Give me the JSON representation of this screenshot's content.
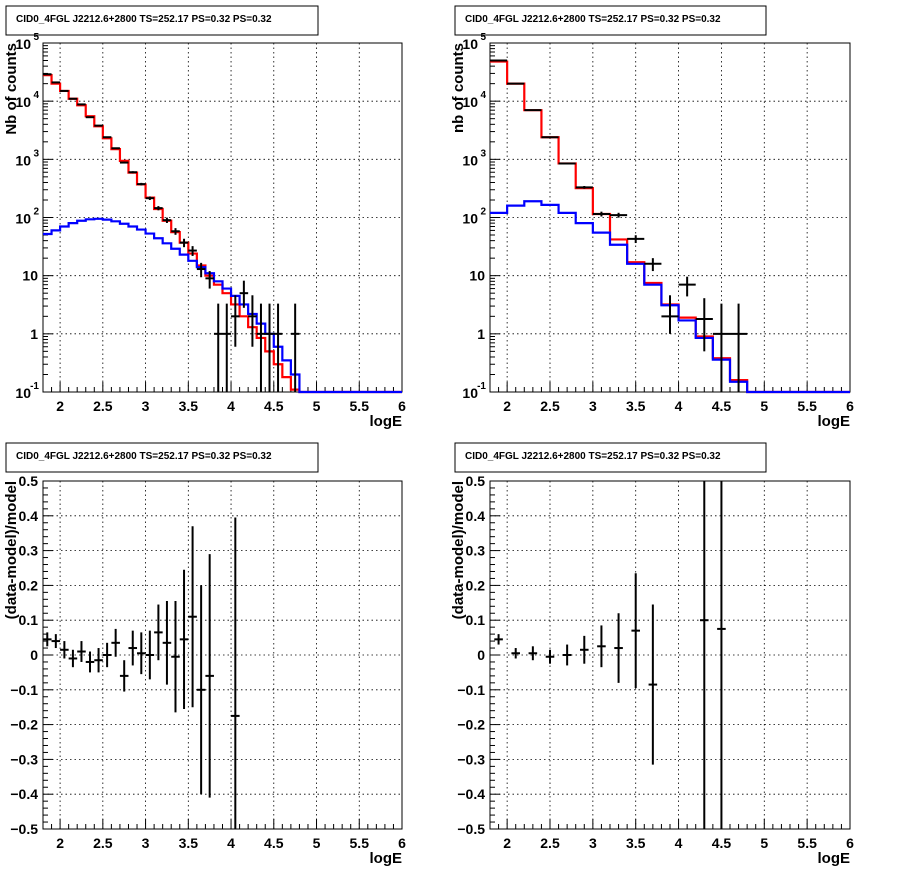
{
  "colors": {
    "model": "#ff0000",
    "background": "#0000ff",
    "data": "#000000"
  },
  "chart_data": [
    {
      "type": "line",
      "title": "CID0_4FGL J2212.6+2800 TS=252.17 PS=0.32 PS=0.32",
      "xlabel": "logE",
      "ylabel": "Nb of counts",
      "xlim": [
        1.8,
        6.0
      ],
      "ylim": [
        0.1,
        100000
      ],
      "yscale": "log",
      "grid": true,
      "xticks": [
        "2",
        "2.5",
        "3",
        "3.5",
        "4",
        "4.5",
        "5",
        "5.5",
        "6"
      ],
      "yticks": [
        "10^-1",
        "1",
        "10",
        "10^2",
        "10^3",
        "10^4",
        "10^5"
      ],
      "x_edges": [
        1.8,
        1.9,
        2.0,
        2.1,
        2.2,
        2.3,
        2.4,
        2.5,
        2.6,
        2.7,
        2.8,
        2.9,
        3.0,
        3.1,
        3.2,
        3.3,
        3.4,
        3.5,
        3.6,
        3.7,
        3.8,
        3.9,
        4.0,
        4.1,
        4.2,
        4.3,
        4.4,
        4.5,
        4.6,
        4.7,
        4.8,
        4.9,
        5.0,
        5.1,
        5.2,
        5.3,
        5.4,
        5.5,
        5.6,
        5.7,
        5.8,
        5.9,
        6.0
      ],
      "series": [
        {
          "style": "step",
          "color": "#ff0000",
          "values": [
            28000,
            20000,
            15000,
            11000,
            8500,
            5500,
            3700,
            2300,
            1500,
            940,
            590,
            370,
            220,
            140,
            88,
            56,
            37,
            24,
            15,
            10,
            7,
            5,
            3.2,
            2,
            1.3,
            0.85,
            0.5,
            0.3,
            0.18,
            0.11,
            0.1,
            0.1,
            0.1,
            0.1,
            0.1,
            0.1,
            0.1,
            0.1,
            0.1,
            0.1,
            0.1,
            0.1
          ]
        },
        {
          "style": "step",
          "color": "#0000ff",
          "values": [
            52,
            60,
            70,
            80,
            88,
            93,
            95,
            92,
            86,
            78,
            70,
            62,
            53,
            44,
            36,
            29,
            23,
            18,
            14,
            11,
            8,
            6,
            4.5,
            3.2,
            2.2,
            1.5,
            1.0,
            0.6,
            0.35,
            0.2,
            0.1,
            0.1,
            0.1,
            0.1,
            0.1,
            0.1,
            0.1,
            0.1,
            0.1,
            0.1,
            0.1,
            0.1
          ]
        },
        {
          "style": "points",
          "color": "#000000",
          "x": [
            1.85,
            1.95,
            2.05,
            2.15,
            2.25,
            2.35,
            2.45,
            2.55,
            2.65,
            2.75,
            2.85,
            2.95,
            3.05,
            3.15,
            3.25,
            3.35,
            3.45,
            3.55,
            3.65,
            3.75,
            3.85,
            3.95,
            4.05,
            4.15,
            4.25,
            4.35,
            4.45,
            4.55,
            4.75
          ],
          "y": [
            29000,
            21000,
            15000,
            11000,
            8800,
            5300,
            3800,
            2400,
            1550,
            880,
            600,
            375,
            215,
            145,
            90,
            58,
            37,
            27,
            13,
            9,
            1,
            1,
            2,
            5,
            2,
            1,
            1,
            1,
            1
          ],
          "yerr_low": [
            170,
            145,
            122,
            105,
            94,
            73,
            62,
            49,
            39,
            30,
            24,
            19,
            15,
            12,
            9.5,
            7.6,
            6.1,
            5.2,
            3.6,
            3,
            1,
            1,
            1.4,
            2.2,
            1.4,
            1,
            1,
            1,
            1
          ],
          "yerr_high": [
            170,
            145,
            122,
            105,
            94,
            73,
            62,
            49,
            39,
            30,
            24,
            19,
            15,
            12,
            9.5,
            7.6,
            6.1,
            5.2,
            3.6,
            3,
            2.3,
            2.3,
            2.6,
            3.2,
            2.6,
            2.3,
            2.3,
            2.3,
            2.3
          ]
        }
      ]
    },
    {
      "type": "line",
      "title": "CID0_4FGL J2212.6+2800 TS=252.17 PS=0.32 PS=0.32",
      "xlabel": "logE",
      "ylabel": "nb of counts",
      "xlim": [
        1.8,
        6.0
      ],
      "ylim": [
        0.1,
        100000
      ],
      "yscale": "log",
      "grid": true,
      "xticks": [
        "2",
        "2.5",
        "3",
        "3.5",
        "4",
        "4.5",
        "5",
        "5.5",
        "6"
      ],
      "yticks": [
        "10^-1",
        "1",
        "10",
        "10^2",
        "10^3",
        "10^4",
        "10^5"
      ],
      "x_edges": [
        1.8,
        2.0,
        2.2,
        2.4,
        2.6,
        2.8,
        3.0,
        3.2,
        3.4,
        3.6,
        3.8,
        4.0,
        4.2,
        4.4,
        4.6,
        4.8,
        5.0,
        5.2,
        5.4,
        5.6,
        5.8,
        6.0
      ],
      "series": [
        {
          "style": "step",
          "color": "#ff0000",
          "values": [
            48000,
            20000,
            7000,
            2400,
            850,
            320,
            115,
            42,
            17,
            7.5,
            3.2,
            1.9,
            0.9,
            0.38,
            0.16,
            0.1,
            0.1,
            0.1,
            0.1,
            0.1,
            0.1
          ]
        },
        {
          "style": "step",
          "color": "#0000ff",
          "values": [
            120,
            160,
            190,
            165,
            120,
            80,
            55,
            34,
            16,
            7,
            3.1,
            1.7,
            0.85,
            0.36,
            0.15,
            0.1,
            0.1,
            0.1,
            0.1,
            0.1,
            0.1
          ]
        },
        {
          "style": "points",
          "color": "#000000",
          "x": [
            1.9,
            2.1,
            2.3,
            2.5,
            2.7,
            2.9,
            3.1,
            3.3,
            3.5,
            3.7,
            3.9,
            4.1,
            4.3,
            4.5,
            4.7
          ],
          "y": [
            50000,
            20000,
            7000,
            2400,
            850,
            330,
            115,
            110,
            43,
            16,
            2,
            7,
            1.8,
            1,
            1
          ],
          "yerr_low": [
            220,
            140,
            84,
            49,
            29,
            18,
            11,
            10.5,
            6.6,
            4,
            1,
            2.6,
            1.3,
            1,
            1
          ],
          "yerr_high": [
            220,
            140,
            84,
            49,
            29,
            18,
            11,
            10.5,
            6.6,
            4,
            2.6,
            2.6,
            2.3,
            2.3,
            2.3
          ]
        }
      ]
    },
    {
      "type": "scatter",
      "title": "CID0_4FGL J2212.6+2800 TS=252.17 PS=0.32 PS=0.32",
      "xlabel": "logE",
      "ylabel": "(data-model)/model",
      "xlim": [
        1.8,
        6.0
      ],
      "ylim": [
        -0.5,
        0.5
      ],
      "grid": true,
      "xticks": [
        "2",
        "2.5",
        "3",
        "3.5",
        "4",
        "4.5",
        "5",
        "5.5",
        "6"
      ],
      "yticks": [
        "−0.5",
        "−0.4",
        "−0.3",
        "−0.2",
        "−0.1",
        "0",
        "0.1",
        "0.2",
        "0.3",
        "0.4",
        "0.5"
      ],
      "series": [
        {
          "style": "points",
          "color": "#000000",
          "x": [
            1.85,
            1.95,
            2.05,
            2.15,
            2.25,
            2.35,
            2.45,
            2.55,
            2.65,
            2.75,
            2.85,
            2.95,
            3.05,
            3.15,
            3.25,
            3.35,
            3.45,
            3.55,
            3.65,
            3.75,
            4.05
          ],
          "y": [
            0.045,
            0.04,
            0.015,
            -0.01,
            0.01,
            -0.02,
            -0.015,
            0.0,
            0.035,
            -0.06,
            0.02,
            0.005,
            0.0,
            0.065,
            0.035,
            -0.005,
            0.045,
            0.11,
            -0.1,
            -0.06,
            -0.175
          ],
          "yerr": [
            0.02,
            0.02,
            0.025,
            0.025,
            0.03,
            0.03,
            0.035,
            0.035,
            0.04,
            0.045,
            0.05,
            0.06,
            0.07,
            0.08,
            0.12,
            0.16,
            0.2,
            0.26,
            0.3,
            0.35,
            0.57
          ]
        }
      ]
    },
    {
      "type": "scatter",
      "title": "CID0_4FGL J2212.6+2800 TS=252.17 PS=0.32 PS=0.32",
      "xlabel": "logE",
      "ylabel": "(data-model)/model",
      "xlim": [
        1.8,
        6.0
      ],
      "ylim": [
        -0.5,
        0.5
      ],
      "grid": true,
      "xticks": [
        "2",
        "2.5",
        "3",
        "3.5",
        "4",
        "4.5",
        "5",
        "5.5",
        "6"
      ],
      "yticks": [
        "−0.5",
        "−0.4",
        "−0.3",
        "−0.2",
        "−0.1",
        "0",
        "0.1",
        "0.2",
        "0.3",
        "0.4",
        "0.5"
      ],
      "series": [
        {
          "style": "points",
          "color": "#000000",
          "x": [
            1.9,
            2.1,
            2.3,
            2.5,
            2.7,
            2.9,
            3.1,
            3.3,
            3.5,
            3.7,
            4.3,
            4.5
          ],
          "y": [
            0.045,
            0.005,
            0.005,
            -0.005,
            0.0,
            0.015,
            0.025,
            0.02,
            0.07,
            -0.085,
            0.1,
            0.075
          ],
          "yerr": [
            0.015,
            0.015,
            0.02,
            0.02,
            0.03,
            0.04,
            0.06,
            0.1,
            0.165,
            0.23,
            0.6,
            0.6
          ]
        }
      ]
    }
  ]
}
